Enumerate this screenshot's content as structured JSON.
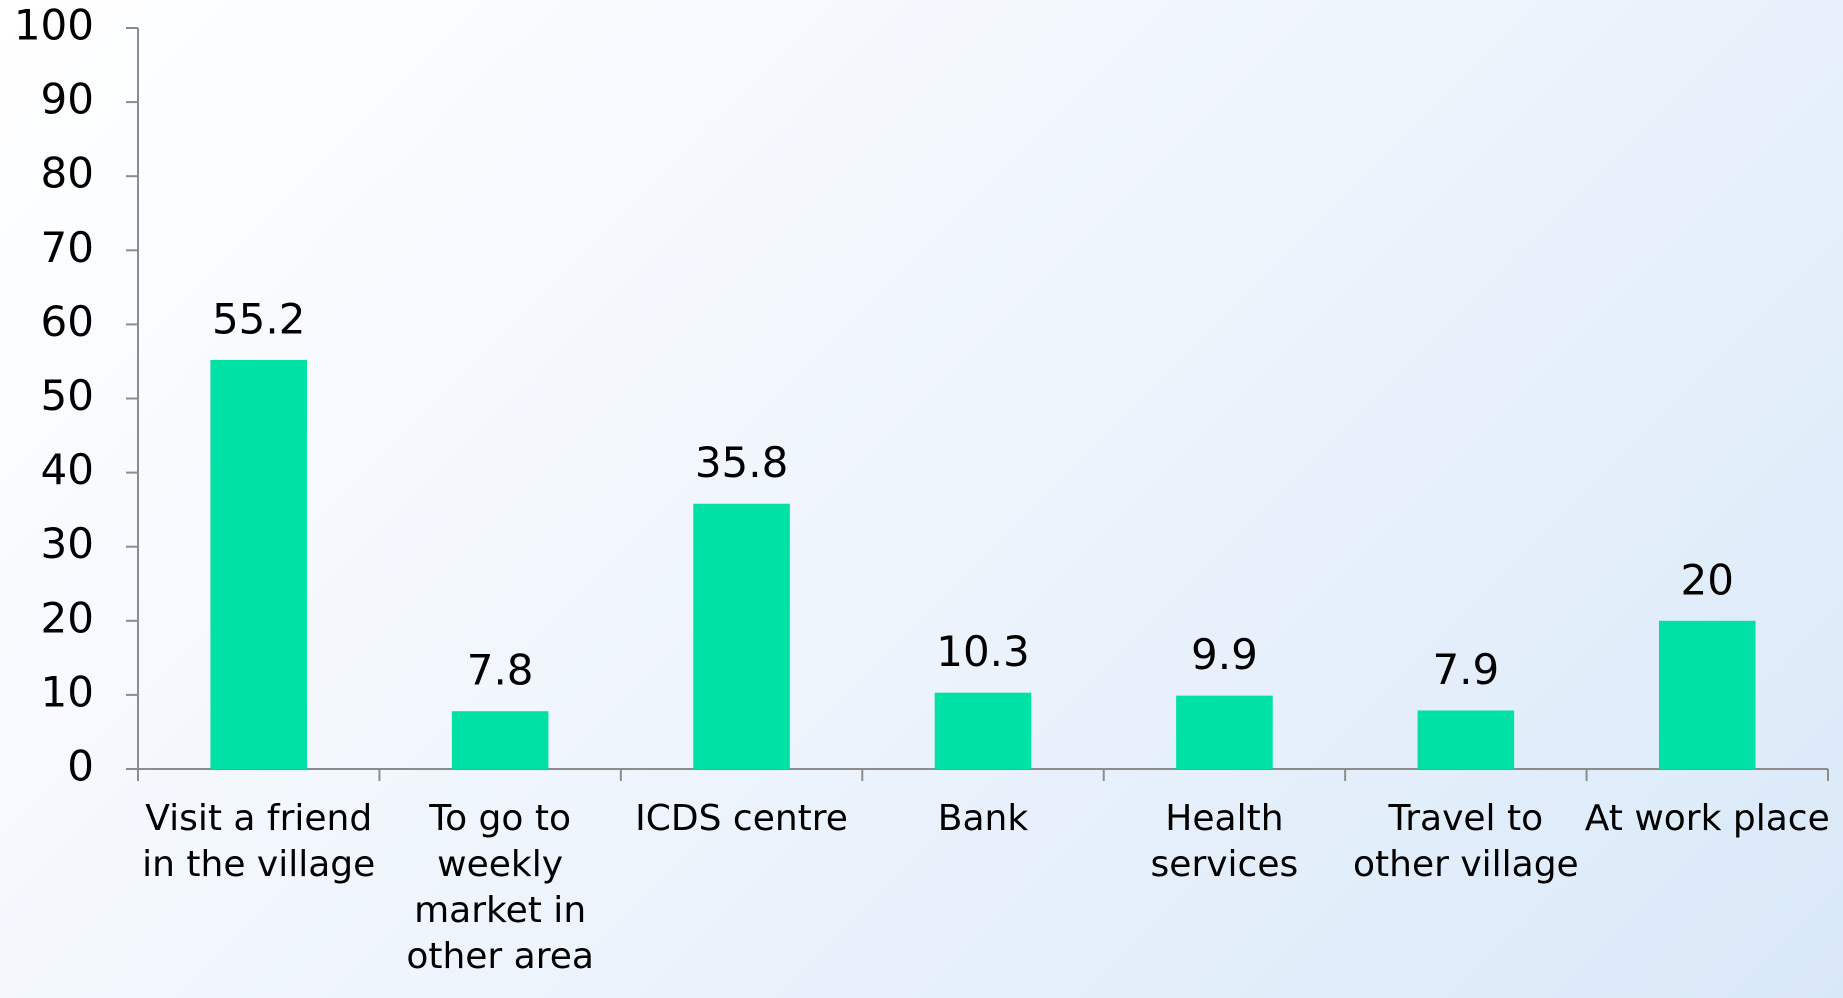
{
  "chart_data": {
    "type": "bar",
    "categories": [
      "Visit a friend in the village",
      "To go to weekly market in other area",
      "ICDS centre",
      "Bank",
      "Health services",
      "Travel to other village",
      "At work place"
    ],
    "values": [
      55.2,
      7.8,
      35.8,
      10.3,
      9.9,
      7.9,
      20
    ],
    "color": "#00e2a5",
    "ylim": [
      0,
      100
    ],
    "yticks": [
      0,
      10,
      20,
      30,
      40,
      50,
      60,
      70,
      80,
      90,
      100
    ],
    "grid": false
  }
}
